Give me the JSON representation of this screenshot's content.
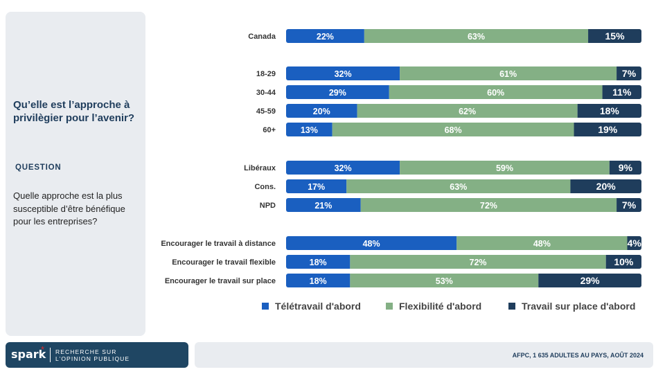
{
  "slide": {
    "title": "Qu’elle est l’approche à privilègier pour l’avenir?",
    "question_label": "QUESTION",
    "question_text": "Quelle approche est la plus susceptible d’être bénéfique pour les entreprises?",
    "source": "AFPC, 1 635 ADULTES AU PAYS, AOÛT 2024"
  },
  "brand": {
    "logo_text": "spark",
    "logo_star": "*",
    "tagline_line1": "RECHERCHE SUR",
    "tagline_line2": "L’OPINION PUBLIQUE"
  },
  "chart_data": {
    "type": "bar",
    "orientation": "horizontal",
    "stacked": true,
    "value_suffix": "%",
    "legend_position": "bottom",
    "grid": false,
    "categories": [
      "Canada",
      "18-29",
      "30-44",
      "45-59",
      "60+",
      "Libéraux",
      "Cons.",
      "NPD",
      "Encourager le travail à distance",
      "Encourager le travail flexible",
      "Encourager le travail sur place"
    ],
    "groups": [
      1,
      4,
      3,
      3
    ],
    "series": [
      {
        "name": "Télétravail d'abord",
        "color": "#1a5fc0",
        "values": [
          22,
          32,
          29,
          20,
          13,
          32,
          17,
          21,
          48,
          18,
          18
        ]
      },
      {
        "name": "Flexibilité d'abord",
        "color": "#84b085",
        "values": [
          63,
          61,
          60,
          62,
          68,
          59,
          63,
          72,
          48,
          72,
          53
        ]
      },
      {
        "name": "Travail sur place d'abord",
        "color": "#1f3d5c",
        "values": [
          15,
          7,
          11,
          18,
          19,
          9,
          20,
          7,
          4,
          10,
          29
        ]
      }
    ]
  }
}
